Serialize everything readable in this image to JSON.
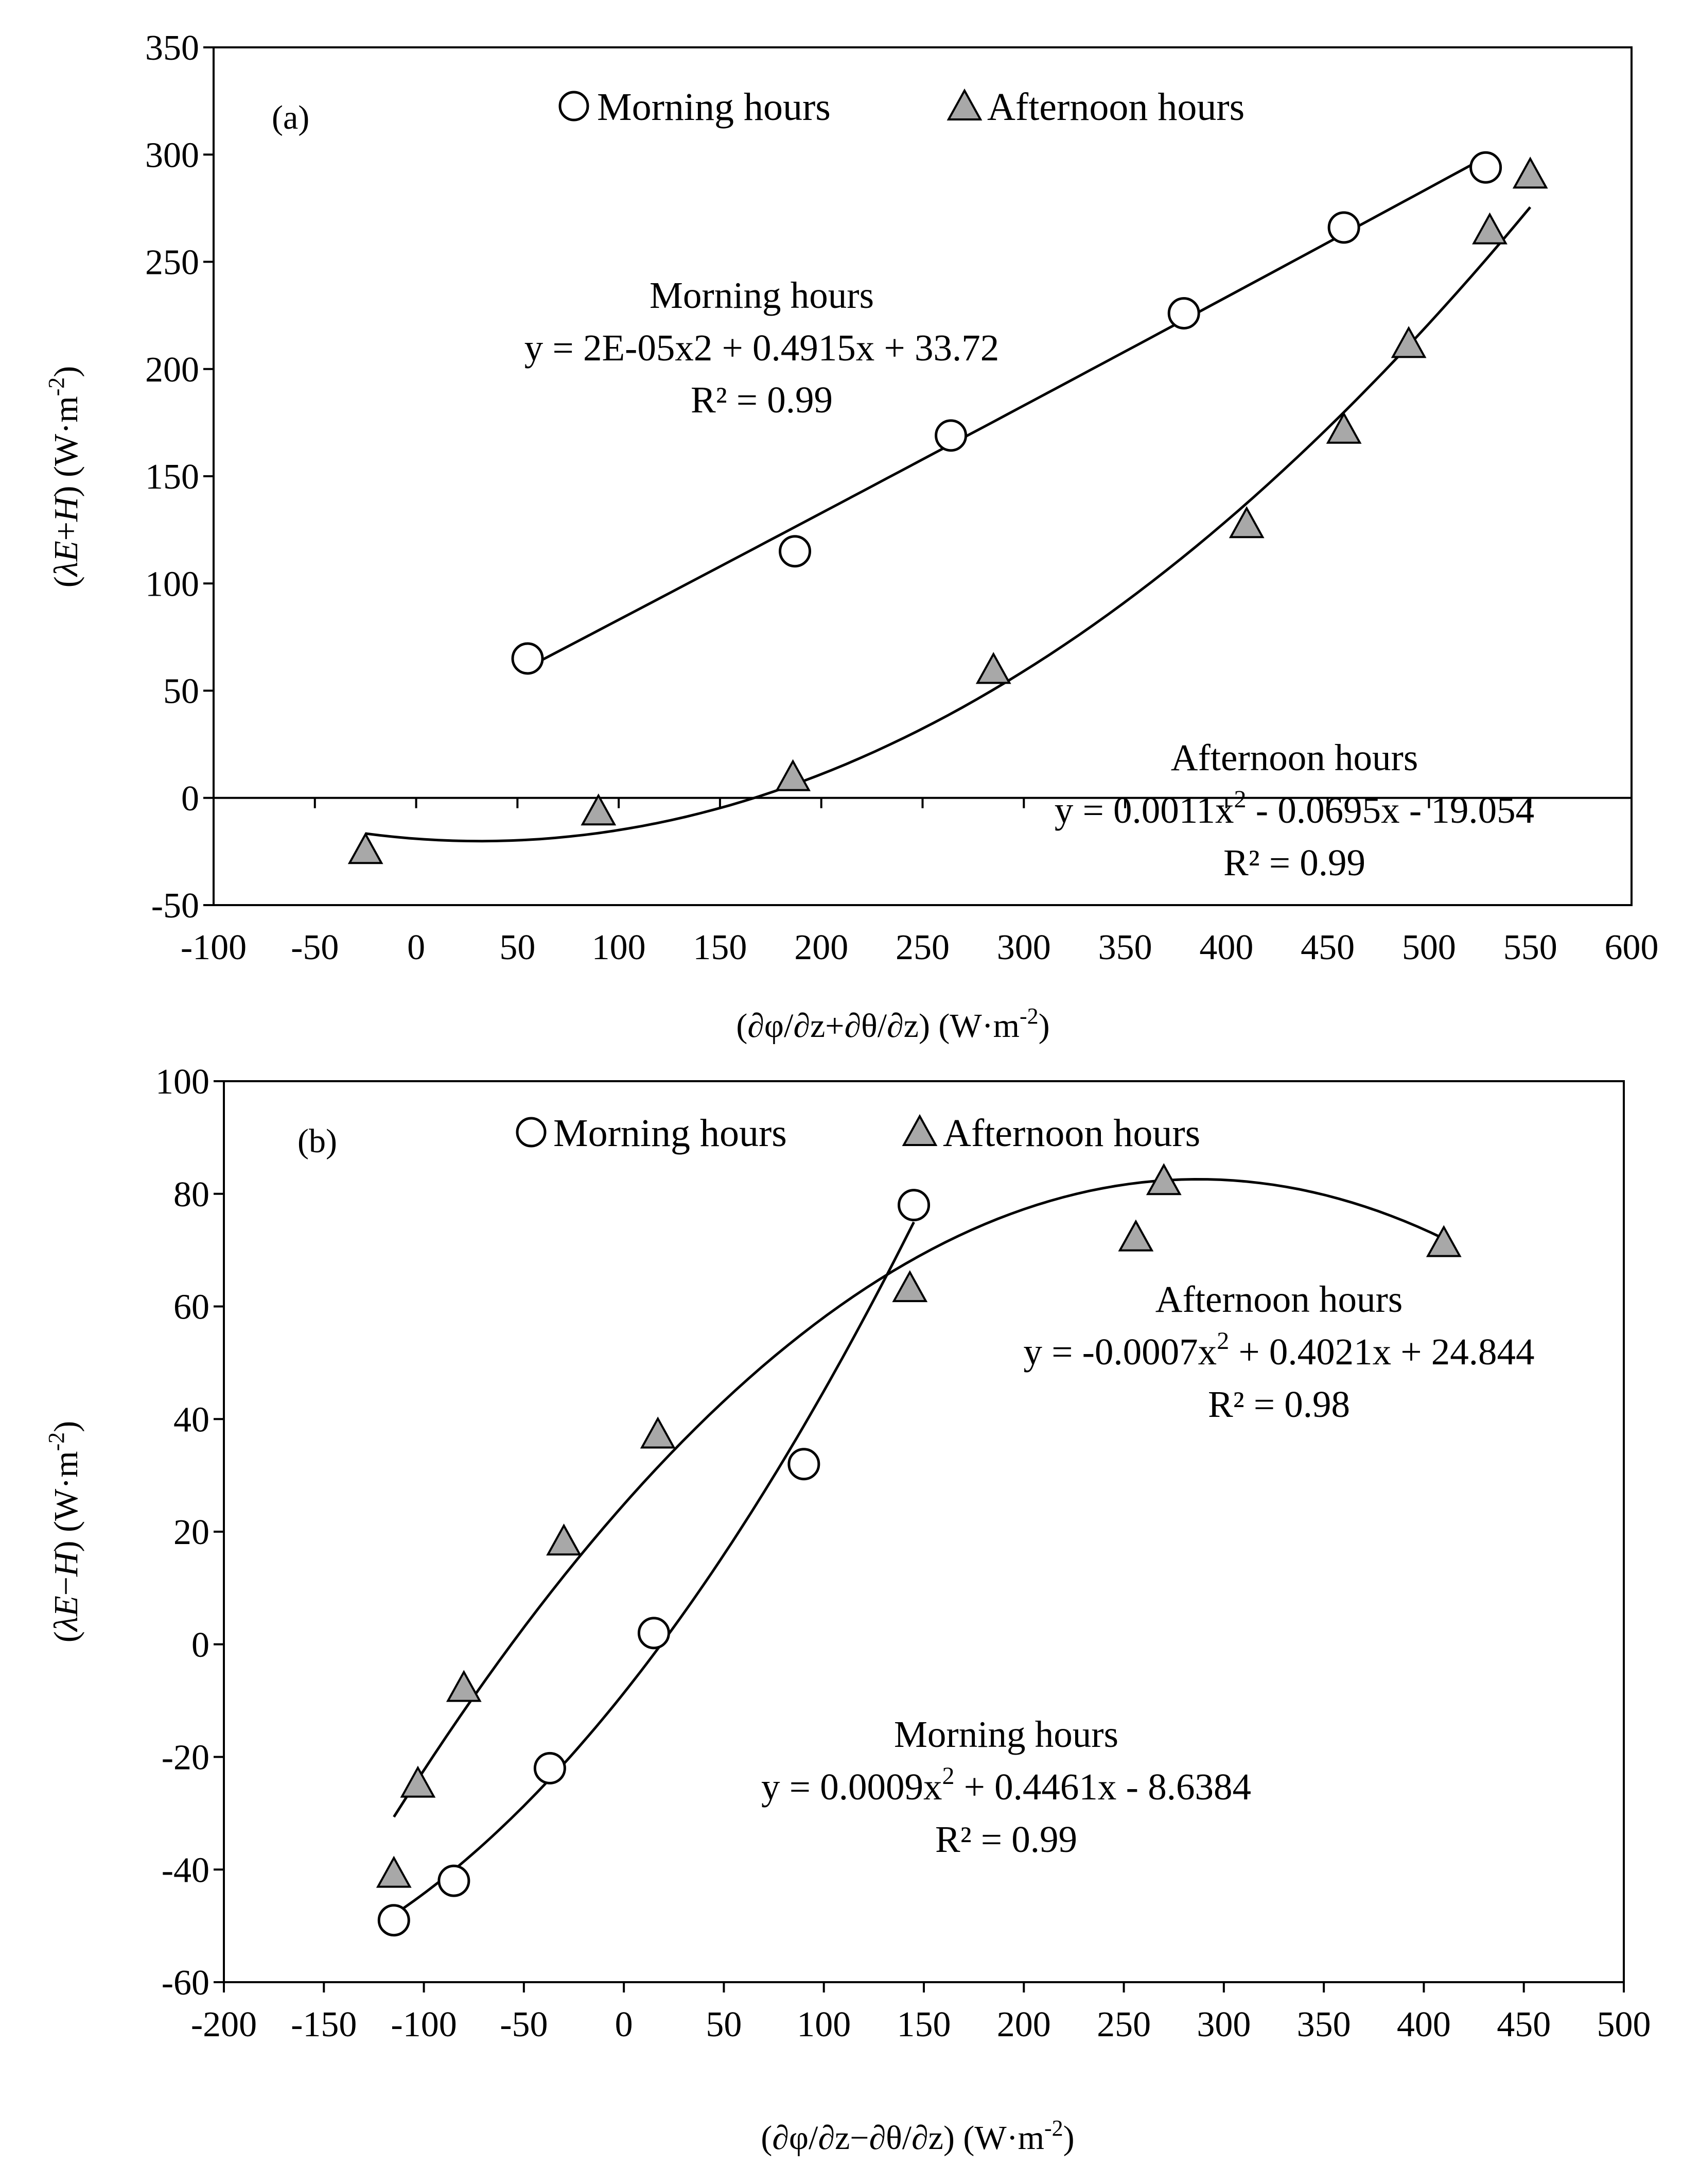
{
  "chart_data": [
    {
      "type": "scatter",
      "panel_label": "(a)",
      "title": "",
      "xlabel": "(∂φ/∂z+∂θ/∂z) (W·m",
      "xlabel_sup": "-2",
      "xlabel_close": ")",
      "ylabel_var": "λE",
      "ylabel_op": "+",
      "ylabel_var2": "H",
      "ylabel_unit": "(W·m",
      "ylabel_sup": "-2",
      "ylabel_close": ")",
      "xlim": [
        -100,
        600
      ],
      "ylim": [
        -50,
        350
      ],
      "xticks": [
        -100,
        -50,
        0,
        50,
        100,
        150,
        200,
        250,
        300,
        350,
        400,
        450,
        500,
        550,
        600
      ],
      "yticks": [
        -50,
        0,
        50,
        100,
        150,
        200,
        250,
        300,
        350
      ],
      "grid": false,
      "legend": {
        "position": "top",
        "entries": [
          "Morning hours",
          "Afternoon hours"
        ]
      },
      "series": [
        {
          "name": "Morning hours",
          "marker": "open-circle",
          "points": [
            [
              55,
              65
            ],
            [
              187,
              115
            ],
            [
              264,
              169
            ],
            [
              379,
              226
            ],
            [
              458,
              266
            ],
            [
              528,
              294
            ]
          ],
          "fit": {
            "type": "poly2",
            "coef": [
              2e-05,
              0.4915,
              33.72
            ],
            "xrange": [
              55,
              528
            ]
          },
          "annotation": {
            "name": "Morning hours",
            "equation": "y = 2E-05x2 + 0.4915x + 33.72",
            "r2": "R² = 0.99"
          }
        },
        {
          "name": "Afternoon hours",
          "marker": "filled-triangle",
          "color": "#a8a8a8",
          "points": [
            [
              -25,
              -25
            ],
            [
              90,
              -7
            ],
            [
              186,
              9
            ],
            [
              285,
              59
            ],
            [
              410,
              127
            ],
            [
              458,
              171
            ],
            [
              490,
              211
            ],
            [
              530,
              264
            ],
            [
              550,
              290
            ]
          ],
          "fit": {
            "type": "poly2",
            "coef": [
              0.0011,
              -0.0695,
              -19.054
            ],
            "xrange": [
              -25,
              550
            ]
          },
          "annotation": {
            "name": "Afternoon hours",
            "equation_a": "y = 0.0011x",
            "equation_sup": "2",
            "equation_b": " - 0.0695x - 19.054",
            "r2": "R² = 0.99"
          }
        }
      ]
    },
    {
      "type": "scatter",
      "panel_label": "(b)",
      "title": "",
      "xlabel": "(∂φ/∂z−∂θ/∂z) (W·m",
      "xlabel_sup": "-2",
      "xlabel_close": ")",
      "ylabel_var": "λE",
      "ylabel_op": "−",
      "ylabel_var2": "H",
      "ylabel_unit": "(W·m",
      "ylabel_sup": "-2",
      "ylabel_close": ")",
      "xlim": [
        -200,
        500
      ],
      "ylim": [
        -60,
        100
      ],
      "xticks": [
        -200,
        -150,
        -100,
        -50,
        0,
        50,
        100,
        150,
        200,
        250,
        300,
        350,
        400,
        450,
        500
      ],
      "yticks": [
        -60,
        -40,
        -20,
        0,
        20,
        40,
        60,
        80,
        100
      ],
      "grid": false,
      "legend": {
        "position": "top",
        "entries": [
          "Morning hours",
          "Afternoon hours"
        ]
      },
      "series": [
        {
          "name": "Morning hours",
          "marker": "open-circle",
          "points": [
            [
              -115,
              -49
            ],
            [
              -85,
              -42
            ],
            [
              -37,
              -22
            ],
            [
              15,
              2
            ],
            [
              90,
              32
            ],
            [
              145,
              78
            ]
          ],
          "fit": {
            "type": "poly2",
            "coef": [
              0.0009,
              0.4461,
              -8.6384
            ],
            "xrange": [
              -115,
              145
            ]
          },
          "annotation": {
            "name": "Morning hours",
            "equation_a": "y = 0.0009x",
            "equation_sup": "2",
            "equation_b": " + 0.4461x - 8.6384",
            "r2": "R² = 0.99"
          }
        },
        {
          "name": "Afternoon hours",
          "marker": "filled-triangle",
          "color": "#a8a8a8",
          "points": [
            [
              -115,
              -41
            ],
            [
              -103,
              -25
            ],
            [
              -80,
              -8
            ],
            [
              -30,
              18
            ],
            [
              17,
              37
            ],
            [
              143,
              63
            ],
            [
              256,
              72
            ],
            [
              270,
              82
            ],
            [
              410,
              71
            ]
          ],
          "fit": {
            "type": "poly2",
            "coef": [
              -0.0007,
              0.4021,
              24.844
            ],
            "xrange": [
              -115,
              410
            ]
          },
          "annotation": {
            "name": "Afternoon hours",
            "equation_a": "y = -0.0007x",
            "equation_sup": "2",
            "equation_b": " + 0.4021x + 24.844",
            "r2": "R² = 0.98"
          }
        }
      ]
    }
  ]
}
